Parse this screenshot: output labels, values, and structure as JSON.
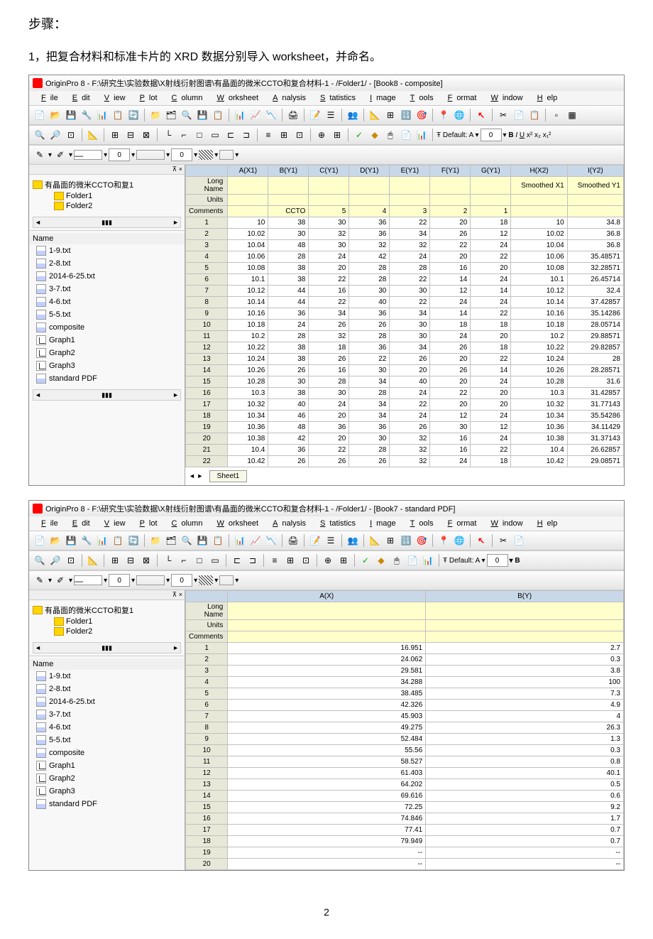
{
  "page_header": {
    "step_label": "步骤：",
    "step_desc": "1，把复合材料和标准卡片的 XRD 数据分别导入 worksheet，并命名。"
  },
  "window1": {
    "title": "OriginPro 8 - F:\\研究生\\实验数据\\X射线衍射图谱\\有晶面的微米CCTO和复合材料-1 - /Folder1/ - [Book8 - composite]",
    "menus": [
      "File",
      "Edit",
      "View",
      "Plot",
      "Column",
      "Worksheet",
      "Analysis",
      "Statistics",
      "Image",
      "Tools",
      "Format",
      "Window",
      "Help"
    ],
    "tree_root": "有晶面的微米CCTO和复1",
    "folders": [
      "Folder1",
      "Folder2"
    ],
    "name_header": "Name",
    "files": [
      {
        "name": "1-9.txt",
        "type": "ws"
      },
      {
        "name": "2-8.txt",
        "type": "ws"
      },
      {
        "name": "2014-6-25.txt",
        "type": "ws"
      },
      {
        "name": "3-7.txt",
        "type": "ws"
      },
      {
        "name": "4-6.txt",
        "type": "ws"
      },
      {
        "name": "5-5.txt",
        "type": "ws"
      },
      {
        "name": "composite",
        "type": "ws"
      },
      {
        "name": "Graph1",
        "type": "gr"
      },
      {
        "name": "Graph2",
        "type": "gr"
      },
      {
        "name": "Graph3",
        "type": "gr"
      },
      {
        "name": "standard PDF",
        "type": "ws"
      }
    ],
    "col_headers": [
      "A(X1)",
      "B(Y1)",
      "C(Y1)",
      "D(Y1)",
      "E(Y1)",
      "F(Y1)",
      "G(Y1)",
      "H(X2)",
      "I(Y2)"
    ],
    "row_labels": [
      "Long Name",
      "Units",
      "Comments"
    ],
    "long_name_row": [
      "",
      "",
      "",
      "",
      "",
      "",
      "",
      "Smoothed X1",
      "Smoothed Y1"
    ],
    "comments_row": [
      "",
      "CCTO",
      "5",
      "4",
      "3",
      "2",
      "1",
      "",
      ""
    ],
    "data_rows": [
      [
        "10",
        "38",
        "30",
        "36",
        "22",
        "20",
        "18",
        "10",
        "34.8"
      ],
      [
        "10.02",
        "30",
        "32",
        "36",
        "34",
        "26",
        "12",
        "10.02",
        "36.8"
      ],
      [
        "10.04",
        "48",
        "30",
        "32",
        "32",
        "22",
        "24",
        "10.04",
        "36.8"
      ],
      [
        "10.06",
        "28",
        "24",
        "42",
        "24",
        "20",
        "22",
        "10.06",
        "35.48571"
      ],
      [
        "10.08",
        "38",
        "20",
        "28",
        "28",
        "16",
        "20",
        "10.08",
        "32.28571"
      ],
      [
        "10.1",
        "38",
        "22",
        "28",
        "22",
        "14",
        "24",
        "10.1",
        "26.45714"
      ],
      [
        "10.12",
        "44",
        "16",
        "30",
        "30",
        "12",
        "14",
        "10.12",
        "32.4"
      ],
      [
        "10.14",
        "44",
        "22",
        "40",
        "22",
        "24",
        "24",
        "10.14",
        "37.42857"
      ],
      [
        "10.16",
        "36",
        "34",
        "36",
        "34",
        "14",
        "22",
        "10.16",
        "35.14286"
      ],
      [
        "10.18",
        "24",
        "26",
        "26",
        "30",
        "18",
        "18",
        "10.18",
        "28.05714"
      ],
      [
        "10.2",
        "28",
        "32",
        "28",
        "30",
        "24",
        "20",
        "10.2",
        "29.88571"
      ],
      [
        "10.22",
        "38",
        "18",
        "36",
        "34",
        "26",
        "18",
        "10.22",
        "29.82857"
      ],
      [
        "10.24",
        "38",
        "26",
        "22",
        "26",
        "20",
        "22",
        "10.24",
        "28"
      ],
      [
        "10.26",
        "26",
        "16",
        "30",
        "20",
        "26",
        "14",
        "10.26",
        "28.28571"
      ],
      [
        "10.28",
        "30",
        "28",
        "34",
        "40",
        "20",
        "24",
        "10.28",
        "31.6"
      ],
      [
        "10.3",
        "38",
        "30",
        "28",
        "24",
        "22",
        "20",
        "10.3",
        "31.42857"
      ],
      [
        "10.32",
        "40",
        "24",
        "34",
        "22",
        "20",
        "20",
        "10.32",
        "31.77143"
      ],
      [
        "10.34",
        "46",
        "20",
        "34",
        "24",
        "12",
        "24",
        "10.34",
        "35.54286"
      ],
      [
        "10.36",
        "48",
        "36",
        "36",
        "26",
        "30",
        "12",
        "10.36",
        "34.11429"
      ],
      [
        "10.38",
        "42",
        "20",
        "30",
        "32",
        "16",
        "24",
        "10.38",
        "31.37143"
      ],
      [
        "10.4",
        "36",
        "22",
        "28",
        "32",
        "16",
        "22",
        "10.4",
        "26.62857"
      ],
      [
        "10.42",
        "26",
        "26",
        "26",
        "32",
        "24",
        "18",
        "10.42",
        "29.08571"
      ]
    ],
    "sheet_tab": "Sheet1",
    "default_text": "Default: A",
    "format_btns": "B I U"
  },
  "window2": {
    "title": "OriginPro 8 - F:\\研究生\\实验数据\\X射线衍射图谱\\有晶面的微米CCTO和复合材料-1 - /Folder1/ - [Book7 - standard PDF]",
    "menus": [
      "File",
      "Edit",
      "View",
      "Plot",
      "Column",
      "Worksheet",
      "Analysis",
      "Statistics",
      "Image",
      "Tools",
      "Format",
      "Window",
      "Help"
    ],
    "tree_root": "有晶面的微米CCTO和复1",
    "folders": [
      "Folder1",
      "Folder2"
    ],
    "name_header": "Name",
    "files": [
      {
        "name": "1-9.txt",
        "type": "ws"
      },
      {
        "name": "2-8.txt",
        "type": "ws"
      },
      {
        "name": "2014-6-25.txt",
        "type": "ws"
      },
      {
        "name": "3-7.txt",
        "type": "ws"
      },
      {
        "name": "4-6.txt",
        "type": "ws"
      },
      {
        "name": "5-5.txt",
        "type": "ws"
      },
      {
        "name": "composite",
        "type": "ws"
      },
      {
        "name": "Graph1",
        "type": "gr"
      },
      {
        "name": "Graph2",
        "type": "gr"
      },
      {
        "name": "Graph3",
        "type": "gr"
      },
      {
        "name": "standard PDF",
        "type": "ws"
      }
    ],
    "col_headers": [
      "A(X)",
      "B(Y)"
    ],
    "row_labels": [
      "Long Name",
      "Units",
      "Comments"
    ],
    "data_rows": [
      [
        "16.951",
        "2.7"
      ],
      [
        "24.062",
        "0.3"
      ],
      [
        "29.581",
        "3.8"
      ],
      [
        "34.288",
        "100"
      ],
      [
        "38.485",
        "7.3"
      ],
      [
        "42.326",
        "4.9"
      ],
      [
        "45.903",
        "4"
      ],
      [
        "49.275",
        "26.3"
      ],
      [
        "52.484",
        "1.3"
      ],
      [
        "55.56",
        "0.3"
      ],
      [
        "58.527",
        "0.8"
      ],
      [
        "61.403",
        "40.1"
      ],
      [
        "64.202",
        "0.5"
      ],
      [
        "69.616",
        "0.6"
      ],
      [
        "72.25",
        "9.2"
      ],
      [
        "74.846",
        "1.7"
      ],
      [
        "77.41",
        "0.7"
      ],
      [
        "79.949",
        "0.7"
      ],
      [
        "--",
        "--"
      ],
      [
        "--",
        "--"
      ]
    ],
    "default_text": "Default: A",
    "format_btns": "B"
  },
  "page_number": "2",
  "toolbar_icons": [
    "📄",
    "📁",
    "📊",
    "🔧",
    "📋",
    "💾",
    "🖨",
    "✂",
    "📎"
  ],
  "side_icons": [
    "↖",
    "🔍",
    "🔎",
    "+",
    "⊞",
    "↕",
    "🖌",
    "🎨",
    "⋮",
    "T",
    "↗",
    "/",
    "⬜"
  ]
}
